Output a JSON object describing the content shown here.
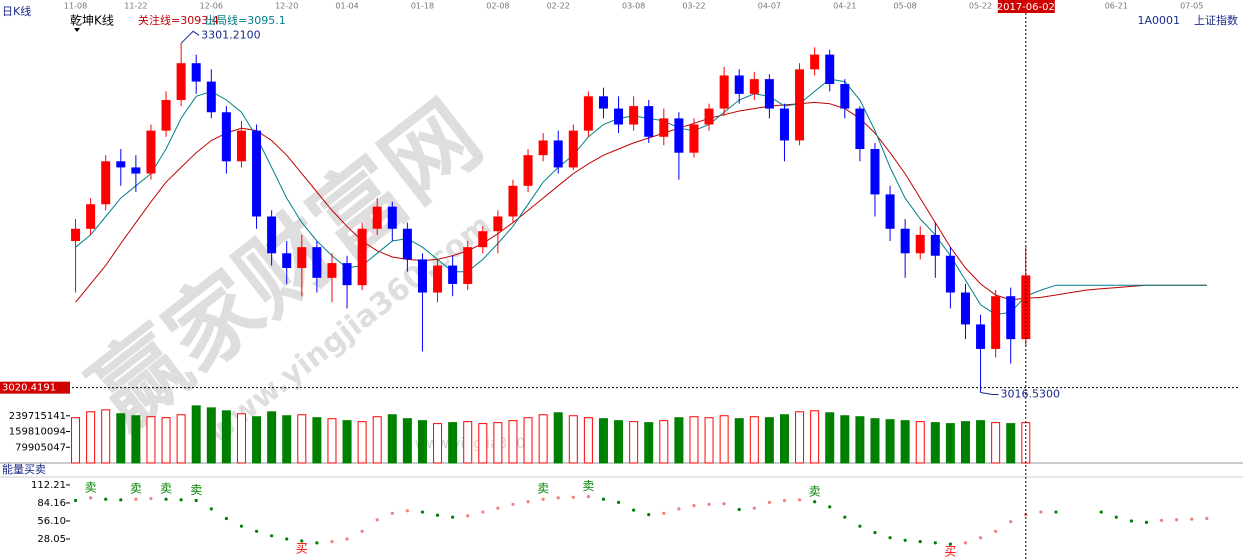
{
  "chart_data": {
    "type": "candlestick",
    "title": "日K线",
    "subtitle": "乾坤K线",
    "symbol": "1A0001",
    "symbol_name": "上证指数",
    "xlim": [
      -0.5,
      77.2
    ],
    "xticks": [
      {
        "value": 0,
        "label": "11-08"
      },
      {
        "value": 4,
        "label": "11-22"
      },
      {
        "value": 9,
        "label": "12-06"
      },
      {
        "value": 14,
        "label": "12-20"
      },
      {
        "value": 18,
        "label": "01-04"
      },
      {
        "value": 23,
        "label": "01-18"
      },
      {
        "value": 28,
        "label": "02-08"
      },
      {
        "value": 32,
        "label": "02-22"
      },
      {
        "value": 37,
        "label": "03-08"
      },
      {
        "value": 41,
        "label": "03-22"
      },
      {
        "value": 46,
        "label": "04-07"
      },
      {
        "value": 51,
        "label": "04-21"
      },
      {
        "value": 55,
        "label": "05-08"
      },
      {
        "value": 60,
        "label": "05-22"
      },
      {
        "value": 69,
        "label": "06-21"
      },
      {
        "value": 74,
        "label": "07-05"
      }
    ],
    "cursor": {
      "x": {
        "value": 63,
        "label": "2017-06-02"
      },
      "y": 3020.4191
    },
    "ylim": [
      3012,
      3330
    ],
    "open": [
      3140,
      3150,
      3170,
      3205,
      3200,
      3195,
      3230,
      3255,
      3285,
      3270,
      3245,
      3205,
      3230,
      3160,
      3130,
      3118,
      3135,
      3110,
      3122,
      3104,
      3150,
      3168,
      3150,
      3125,
      3098,
      3120,
      3105,
      3135,
      3148,
      3160,
      3185,
      3210,
      3222,
      3200,
      3230,
      3258,
      3248,
      3235,
      3250,
      3225,
      3240,
      3212,
      3235,
      3248,
      3275,
      3260,
      3272,
      3248,
      3222,
      3280,
      3292,
      3268,
      3248,
      3215,
      3178,
      3150,
      3130,
      3145,
      3128,
      3098,
      3072,
      3052,
      3095,
      3060
    ],
    "high": [
      3158,
      3175,
      3210,
      3215,
      3210,
      3235,
      3262,
      3301.21,
      3292,
      3280,
      3250,
      3238,
      3235,
      3165,
      3140,
      3145,
      3140,
      3130,
      3128,
      3155,
      3175,
      3172,
      3155,
      3130,
      3125,
      3128,
      3140,
      3152,
      3165,
      3190,
      3215,
      3228,
      3230,
      3235,
      3262,
      3265,
      3258,
      3258,
      3255,
      3248,
      3245,
      3240,
      3252,
      3282,
      3280,
      3278,
      3276,
      3252,
      3285,
      3298,
      3296,
      3272,
      3250,
      3220,
      3185,
      3158,
      3152,
      3155,
      3135,
      3105,
      3080,
      3100,
      3102,
      3135
    ],
    "low": [
      3098,
      3145,
      3165,
      3185,
      3180,
      3190,
      3225,
      3250,
      3260,
      3240,
      3195,
      3200,
      3150,
      3120,
      3105,
      3095,
      3098,
      3090,
      3085,
      3100,
      3145,
      3140,
      3115,
      3050,
      3090,
      3095,
      3100,
      3130,
      3130,
      3155,
      3180,
      3205,
      3195,
      3198,
      3225,
      3240,
      3228,
      3230,
      3220,
      3218,
      3190,
      3208,
      3230,
      3242,
      3252,
      3255,
      3240,
      3205,
      3218,
      3275,
      3262,
      3240,
      3205,
      3160,
      3140,
      3110,
      3125,
      3110,
      3085,
      3060,
      3016.53,
      3045,
      3040,
      3055
    ],
    "close": [
      3150,
      3170,
      3205,
      3200,
      3195,
      3230,
      3255,
      3285,
      3270,
      3245,
      3205,
      3230,
      3160,
      3130,
      3118,
      3135,
      3110,
      3122,
      3104,
      3150,
      3168,
      3150,
      3125,
      3098,
      3120,
      3105,
      3135,
      3148,
      3160,
      3185,
      3210,
      3222,
      3200,
      3230,
      3258,
      3248,
      3235,
      3250,
      3225,
      3240,
      3212,
      3235,
      3248,
      3275,
      3260,
      3272,
      3248,
      3222,
      3280,
      3292,
      3268,
      3248,
      3215,
      3178,
      3150,
      3130,
      3145,
      3128,
      3098,
      3072,
      3052,
      3095,
      3060,
      3112
    ],
    "up_color": "#ff0000",
    "down_color": "#0000ff",
    "series": [
      {
        "name": "关注线=3093.4",
        "color": "#c00000",
        "values": [
          3090,
          3105,
          3120,
          3138,
          3155,
          3172,
          3188,
          3200,
          3212,
          3222,
          3228,
          3232,
          3230,
          3222,
          3210,
          3195,
          3180,
          3165,
          3152,
          3140,
          3132,
          3127,
          3125,
          3124,
          3125,
          3128,
          3132,
          3138,
          3146,
          3155,
          3165,
          3175,
          3185,
          3195,
          3203,
          3210,
          3215,
          3220,
          3224,
          3228,
          3232,
          3236,
          3240,
          3243,
          3246,
          3248,
          3250,
          3251,
          3252,
          3253,
          3252,
          3248,
          3240,
          3228,
          3212,
          3195,
          3175,
          3155,
          3135,
          3118,
          3105,
          3096,
          3092,
          3093.4,
          3094,
          3096,
          3098,
          3100,
          3101,
          3102,
          3103,
          3104,
          3104,
          3104,
          3104,
          3104
        ]
      },
      {
        "name": "出局线=3095.1",
        "color": "#00808a",
        "values": [
          3135,
          3145,
          3160,
          3175,
          3185,
          3195,
          3215,
          3240,
          3258,
          3262,
          3255,
          3245,
          3225,
          3200,
          3175,
          3155,
          3140,
          3128,
          3118,
          3120,
          3130,
          3140,
          3142,
          3135,
          3125,
          3115,
          3115,
          3125,
          3138,
          3152,
          3170,
          3188,
          3200,
          3210,
          3225,
          3235,
          3240,
          3242,
          3240,
          3238,
          3232,
          3230,
          3235,
          3245,
          3255,
          3260,
          3258,
          3250,
          3252,
          3262,
          3272,
          3270,
          3255,
          3230,
          3200,
          3175,
          3158,
          3145,
          3128,
          3108,
          3088,
          3080,
          3082,
          3095.1,
          3100,
          3104,
          3104,
          3104,
          3104,
          3104,
          3104,
          3104,
          3104,
          3104,
          3104,
          3104
        ]
      }
    ],
    "annotations": [
      {
        "index": 7,
        "value": 3301.21,
        "label": "3301.2100"
      },
      {
        "index": 60,
        "value": 3016.53,
        "label": "3016.5300"
      }
    ],
    "volume": {
      "ylim": [
        0,
        330000000
      ],
      "yticks": [
        79905047,
        159810094,
        239715141
      ],
      "up_color": "#ff0000",
      "down_color": "#008000",
      "values": [
        230000000,
        260000000,
        270000000,
        250000000,
        240000000,
        235000000,
        230000000,
        245000000,
        290000000,
        280000000,
        265000000,
        250000000,
        235000000,
        260000000,
        240000000,
        245000000,
        230000000,
        225000000,
        215000000,
        210000000,
        235000000,
        245000000,
        225000000,
        215000000,
        200000000,
        205000000,
        210000000,
        200000000,
        205000000,
        215000000,
        230000000,
        245000000,
        255000000,
        240000000,
        230000000,
        225000000,
        215000000,
        210000000,
        205000000,
        215000000,
        230000000,
        235000000,
        230000000,
        240000000,
        225000000,
        235000000,
        230000000,
        245000000,
        260000000,
        265000000,
        255000000,
        240000000,
        235000000,
        225000000,
        220000000,
        215000000,
        210000000,
        205000000,
        200000000,
        210000000,
        215000000,
        205000000,
        200000000,
        205000000
      ]
    },
    "energy": {
      "title": "能量买卖",
      "ylim": [
        0,
        123
      ],
      "yticks": [
        28.05,
        {
          "value": 56.1,
          "label": "56.10"
        },
        84.16,
        112.21
      ],
      "up_color": "#f08080",
      "down_color": "#008000",
      "values": [
        88,
        92,
        90,
        89,
        90,
        91,
        90,
        89,
        88,
        75,
        60,
        48,
        40,
        33,
        28,
        25,
        22,
        24,
        28,
        40,
        58,
        68,
        72,
        70,
        65,
        62,
        64,
        70,
        76,
        82,
        86,
        90,
        92,
        93,
        94,
        90,
        85,
        73,
        66,
        68,
        75,
        80,
        82,
        83,
        74,
        76,
        85,
        88,
        89,
        86,
        78,
        62,
        48,
        38,
        30,
        26,
        24,
        22,
        20,
        22,
        30,
        40,
        55,
        66,
        70,
        70,
        null,
        null,
        70,
        62,
        56,
        54,
        57,
        58,
        59,
        60
      ],
      "signals": [
        {
          "index": 1,
          "label": "卖",
          "color": "#008000"
        },
        {
          "index": 4,
          "label": "卖",
          "color": "#008000"
        },
        {
          "index": 6,
          "label": "卖",
          "color": "#008000"
        },
        {
          "index": 8,
          "label": "卖",
          "color": "#008000"
        },
        {
          "index": 15,
          "label": "买",
          "color": "#ff0000"
        },
        {
          "index": 31,
          "label": "卖",
          "color": "#008000"
        },
        {
          "index": 34,
          "label": "卖",
          "color": "#008000"
        },
        {
          "index": 49,
          "label": "卖",
          "color": "#008000"
        },
        {
          "index": 58,
          "label": "买",
          "color": "#ff0000"
        }
      ]
    },
    "watermark": {
      "main": "赢家财富网",
      "url": "www.yingjia360.com",
      "small": "www.yingjia360"
    }
  }
}
